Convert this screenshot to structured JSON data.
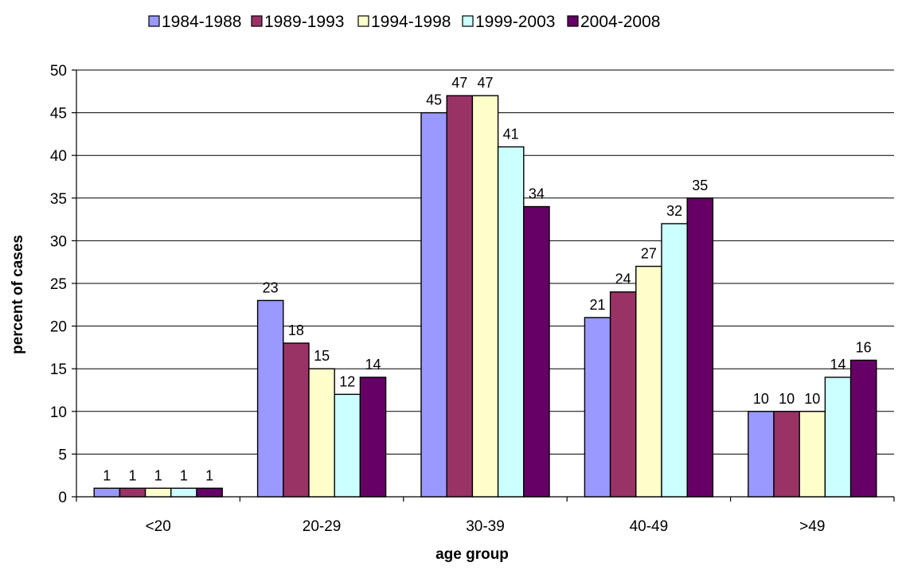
{
  "chart_data": {
    "type": "bar",
    "title": "",
    "xlabel": "age group",
    "ylabel": "percent of cases",
    "categories": [
      "<20",
      "20-29",
      "30-39",
      "40-49",
      ">49"
    ],
    "ylim": [
      0,
      50
    ],
    "yticks": [
      0,
      5,
      10,
      15,
      20,
      25,
      30,
      35,
      40,
      45,
      50
    ],
    "grid": "horizontal",
    "legend_position": "top",
    "series": [
      {
        "name": "1984-1988",
        "color": "#9999FF",
        "values": [
          1,
          23,
          45,
          21,
          10
        ]
      },
      {
        "name": "1989-1993",
        "color": "#993366",
        "values": [
          1,
          18,
          47,
          24,
          10
        ]
      },
      {
        "name": "1994-1998",
        "color": "#FFFFCC",
        "values": [
          1,
          15,
          47,
          27,
          10
        ]
      },
      {
        "name": "1999-2003",
        "color": "#CCFFFF",
        "values": [
          1,
          12,
          41,
          32,
          14
        ]
      },
      {
        "name": "2004-2008",
        "color": "#660066",
        "values": [
          1,
          14,
          34,
          35,
          16
        ]
      }
    ]
  }
}
